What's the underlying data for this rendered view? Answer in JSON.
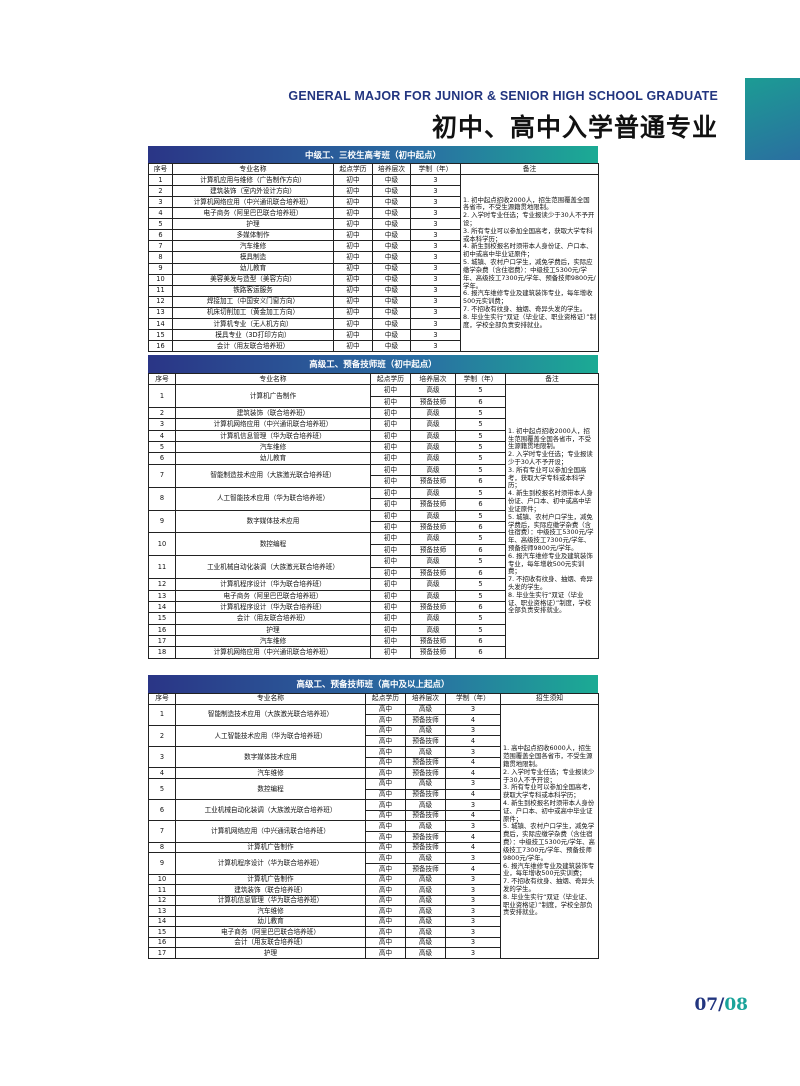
{
  "header": {
    "title_en": "GENERAL MAJOR FOR JUNIOR & SENIOR HIGH SCHOOL GRADUATE",
    "title_cn": "初中、高中入学普通专业"
  },
  "tables": [
    {
      "title": "中级工、三校生高考班（初中起点）",
      "columns": [
        "序号",
        "专业名称",
        "起点学历",
        "培养层次",
        "学制（年）",
        "备注"
      ],
      "rows": [
        {
          "no": 1,
          "name": "计算机应用与维修（广告制作方向）",
          "entries": [
            [
              "初中",
              "中级",
              3
            ]
          ]
        },
        {
          "no": 2,
          "name": "建筑装饰（室内外设计方向）",
          "entries": [
            [
              "初中",
              "中级",
              3
            ]
          ]
        },
        {
          "no": 3,
          "name": "计算机网络应用（中兴通讯联合培养班）",
          "entries": [
            [
              "初中",
              "中级",
              3
            ]
          ]
        },
        {
          "no": 4,
          "name": "电子商务（阿里巴巴联合培养班）",
          "entries": [
            [
              "初中",
              "中级",
              3
            ]
          ]
        },
        {
          "no": 5,
          "name": "护理",
          "entries": [
            [
              "初中",
              "中级",
              3
            ]
          ]
        },
        {
          "no": 6,
          "name": "多媒体制作",
          "entries": [
            [
              "初中",
              "中级",
              3
            ]
          ]
        },
        {
          "no": 7,
          "name": "汽车维修",
          "entries": [
            [
              "初中",
              "中级",
              3
            ]
          ]
        },
        {
          "no": 8,
          "name": "模具制造",
          "entries": [
            [
              "初中",
              "中级",
              3
            ]
          ]
        },
        {
          "no": 9,
          "name": "幼儿教育",
          "entries": [
            [
              "初中",
              "中级",
              3
            ]
          ]
        },
        {
          "no": 10,
          "name": "美容美发与造型（美容方向）",
          "entries": [
            [
              "初中",
              "中级",
              3
            ]
          ]
        },
        {
          "no": 11,
          "name": "铁路客运服务",
          "entries": [
            [
              "初中",
              "中级",
              3
            ]
          ]
        },
        {
          "no": 12,
          "name": "焊接加工（中国安义门窗方向）",
          "entries": [
            [
              "初中",
              "中级",
              3
            ]
          ]
        },
        {
          "no": 13,
          "name": "机床切削加工（黄金加工方向）",
          "entries": [
            [
              "初中",
              "中级",
              3
            ]
          ]
        },
        {
          "no": 14,
          "name": "计算机专业（无人机方向）",
          "entries": [
            [
              "初中",
              "中级",
              3
            ]
          ]
        },
        {
          "no": 15,
          "name": "模具专业（3D打印方向）",
          "entries": [
            [
              "初中",
              "中级",
              3
            ]
          ]
        },
        {
          "no": 16,
          "name": "会计（用友联合培养班）",
          "entries": [
            [
              "初中",
              "中级",
              3
            ]
          ]
        }
      ],
      "notes": [
        "1. 初中起点招收2000人，招生范围覆盖全国各省市，不受生源籍贯地限制。",
        "2. 入学时专业任选；专业报读少于30人不予开设；",
        "3. 所有专业可以参加全国高考，获取大学专科或本科学历；",
        "4. 新生到校报名时须带本人身份证、户口本、初中或高中毕业证原件；",
        "5. 城镇、农村户口学生，减免学费后，实际应缴学杂费（含住宿费）：中级技工5300元/学年、高级技工7300元/学年、预备技师9800元/学年。",
        "6. 报汽车维修专业及建筑装饰专业，每年增收500元实训费；",
        "7. 不招收有纹身、抽烟、奇异头发的学生。",
        "8. 毕业生实行“双证（毕业证、职业资格证）”制度，学校全部负责安排就业。"
      ]
    },
    {
      "title": "高级工、预备技师班（初中起点）",
      "columns": [
        "序号",
        "专业名称",
        "起点学历",
        "培养层次",
        "学制（年）",
        "备注"
      ],
      "rows": [
        {
          "no": 1,
          "name": "计算机广告制作",
          "entries": [
            [
              "初中",
              "高级",
              5
            ],
            [
              "初中",
              "预备技师",
              6
            ]
          ]
        },
        {
          "no": 2,
          "name": "建筑装饰（联合培养班）",
          "entries": [
            [
              "初中",
              "高级",
              5
            ]
          ]
        },
        {
          "no": 3,
          "name": "计算机网络应用（中兴通讯联合培养班）",
          "entries": [
            [
              "初中",
              "高级",
              5
            ]
          ]
        },
        {
          "no": 4,
          "name": "计算机信息管理（华为联合培养班）",
          "entries": [
            [
              "初中",
              "高级",
              5
            ]
          ]
        },
        {
          "no": 5,
          "name": "汽车维修",
          "entries": [
            [
              "初中",
              "高级",
              5
            ]
          ]
        },
        {
          "no": 6,
          "name": "幼儿教育",
          "entries": [
            [
              "初中",
              "高级",
              5
            ]
          ]
        },
        {
          "no": 7,
          "name": "智能制造技术应用（大族激光联合培养班）",
          "entries": [
            [
              "初中",
              "高级",
              5
            ],
            [
              "初中",
              "预备技师",
              6
            ]
          ]
        },
        {
          "no": 8,
          "name": "人工智能技术应用（华为联合培养班）",
          "entries": [
            [
              "初中",
              "高级",
              5
            ],
            [
              "初中",
              "预备技师",
              6
            ]
          ]
        },
        {
          "no": 9,
          "name": "数字媒体技术应用",
          "entries": [
            [
              "初中",
              "高级",
              5
            ],
            [
              "初中",
              "预备技师",
              6
            ]
          ]
        },
        {
          "no": 10,
          "name": "数控编程",
          "entries": [
            [
              "初中",
              "高级",
              5
            ],
            [
              "初中",
              "预备技师",
              6
            ]
          ]
        },
        {
          "no": 11,
          "name": "工业机械自动化装调（大族激光联合培养班）",
          "entries": [
            [
              "初中",
              "高级",
              5
            ],
            [
              "初中",
              "预备技师",
              6
            ]
          ]
        },
        {
          "no": 12,
          "name": "计算机程序设计（华为联合培养班）",
          "entries": [
            [
              "初中",
              "高级",
              5
            ]
          ]
        },
        {
          "no": 13,
          "name": "电子商务（阿里巴巴联合培养班）",
          "entries": [
            [
              "初中",
              "高级",
              5
            ]
          ]
        },
        {
          "no": 14,
          "name": "计算机程序设计（华为联合培养班）",
          "entries": [
            [
              "初中",
              "预备技师",
              6
            ]
          ]
        },
        {
          "no": 15,
          "name": "会计（用友联合培养班）",
          "entries": [
            [
              "初中",
              "高级",
              5
            ]
          ]
        },
        {
          "no": 16,
          "name": "护理",
          "entries": [
            [
              "初中",
              "高级",
              5
            ]
          ]
        },
        {
          "no": 17,
          "name": "汽车维修",
          "entries": [
            [
              "初中",
              "预备技师",
              6
            ]
          ]
        },
        {
          "no": 18,
          "name": "计算机网络应用（中兴通讯联合培养班）",
          "entries": [
            [
              "初中",
              "预备技师",
              6
            ]
          ]
        }
      ],
      "notes": [
        "1. 初中起点招收2000人，招生范围覆盖全国各省市，不受生源籍贯地限制。",
        "2. 入学时专业任选；专业报读少于30人不予开设；",
        "3. 所有专业可以参加全国高考，获取大学专科或本科学历；",
        "4. 新生到校报名时须带本人身份证、户口本、初中或高中毕业证原件；",
        "5. 城镇、农村户口学生，减免学费后，实际应缴学杂费（含住宿费）：中级技工5300元/学年、高级技工7300元/学年、预备技师9800元/学年。",
        "6. 报汽车维修专业及建筑装饰专业，每年增收500元实训费；",
        "7. 不招收有纹身、抽烟、奇异头发的学生。",
        "8. 毕业生实行“双证（毕业证、职业资格证）”制度，学校全部负责安排就业。"
      ]
    },
    {
      "title": "高级工、预备技师班（高中及以上起点）",
      "columns": [
        "序号",
        "专业名称",
        "起点学历",
        "培养层次",
        "学制（年）",
        "招生须知"
      ],
      "rows": [
        {
          "no": 1,
          "name": "智能制造技术应用（大族激光联合培养班）",
          "entries": [
            [
              "高中",
              "高级",
              3
            ],
            [
              "高中",
              "预备技师",
              4
            ]
          ]
        },
        {
          "no": 2,
          "name": "人工智能技术应用（华为联合培养班）",
          "entries": [
            [
              "高中",
              "高级",
              3
            ],
            [
              "高中",
              "预备技师",
              4
            ]
          ]
        },
        {
          "no": 3,
          "name": "数字媒体技术应用",
          "entries": [
            [
              "高中",
              "高级",
              3
            ],
            [
              "高中",
              "预备技师",
              4
            ]
          ]
        },
        {
          "no": 4,
          "name": "汽车维修",
          "entries": [
            [
              "高中",
              "预备技师",
              4
            ]
          ]
        },
        {
          "no": 5,
          "name": "数控编程",
          "entries": [
            [
              "高中",
              "高级",
              3
            ],
            [
              "高中",
              "预备技师",
              4
            ]
          ]
        },
        {
          "no": 6,
          "name": "工业机械自动化装调（大族激光联合培养班）",
          "entries": [
            [
              "高中",
              "高级",
              3
            ],
            [
              "高中",
              "预备技师",
              4
            ]
          ]
        },
        {
          "no": 7,
          "name": "计算机网络应用（中兴通讯联合培养班）",
          "entries": [
            [
              "高中",
              "高级",
              3
            ],
            [
              "高中",
              "预备技师",
              4
            ]
          ]
        },
        {
          "no": 8,
          "name": "计算机广告制作",
          "entries": [
            [
              "高中",
              "预备技师",
              4
            ]
          ]
        },
        {
          "no": 9,
          "name": "计算机程序设计（华为联合培养班）",
          "entries": [
            [
              "高中",
              "高级",
              3
            ],
            [
              "高中",
              "预备技师",
              4
            ]
          ]
        },
        {
          "no": 10,
          "name": "计算机广告制作",
          "entries": [
            [
              "高中",
              "高级",
              3
            ]
          ]
        },
        {
          "no": 11,
          "name": "建筑装饰（联合培养班）",
          "entries": [
            [
              "高中",
              "高级",
              3
            ]
          ]
        },
        {
          "no": 12,
          "name": "计算机信息管理（华为联合培养班）",
          "entries": [
            [
              "高中",
              "高级",
              3
            ]
          ]
        },
        {
          "no": 13,
          "name": "汽车维修",
          "entries": [
            [
              "高中",
              "高级",
              3
            ]
          ]
        },
        {
          "no": 14,
          "name": "幼儿教育",
          "entries": [
            [
              "高中",
              "高级",
              3
            ]
          ]
        },
        {
          "no": 15,
          "name": "电子商务（阿里巴巴联合培养班）",
          "entries": [
            [
              "高中",
              "高级",
              3
            ]
          ]
        },
        {
          "no": 16,
          "name": "会计（用友联合培养班）",
          "entries": [
            [
              "高中",
              "高级",
              3
            ]
          ]
        },
        {
          "no": 17,
          "name": "护理",
          "entries": [
            [
              "高中",
              "高级",
              3
            ]
          ]
        }
      ],
      "notes": [
        "1. 高中起点招收6000人，招生范围覆盖全国各省市，不受生源籍贯地限制。",
        "2. 入学时专业任选；专业报读少于30人不予开设；",
        "3. 所有专业可以参加全国高考，获取大学专科或本科学历；",
        "4. 新生到校报名时须带本人身份证、户口本、初中或高中毕业证原件；",
        "5. 城镇、农村户口学生，减免学费后，实际应缴学杂费（含住宿费）：中级技工5300元/学年、高级技工7300元/学年、预备技师9800元/学年。",
        "6. 报汽车维修专业及建筑装饰专业，每年增收500元实训费；",
        "7. 不招收有纹身、抽烟、奇异头发的学生。",
        "8. 毕业生实行“双证（毕业证、职业资格证）”制度，学校全部负责安排就业。"
      ]
    }
  ],
  "page_number": {
    "current": "07/",
    "total": "08"
  }
}
